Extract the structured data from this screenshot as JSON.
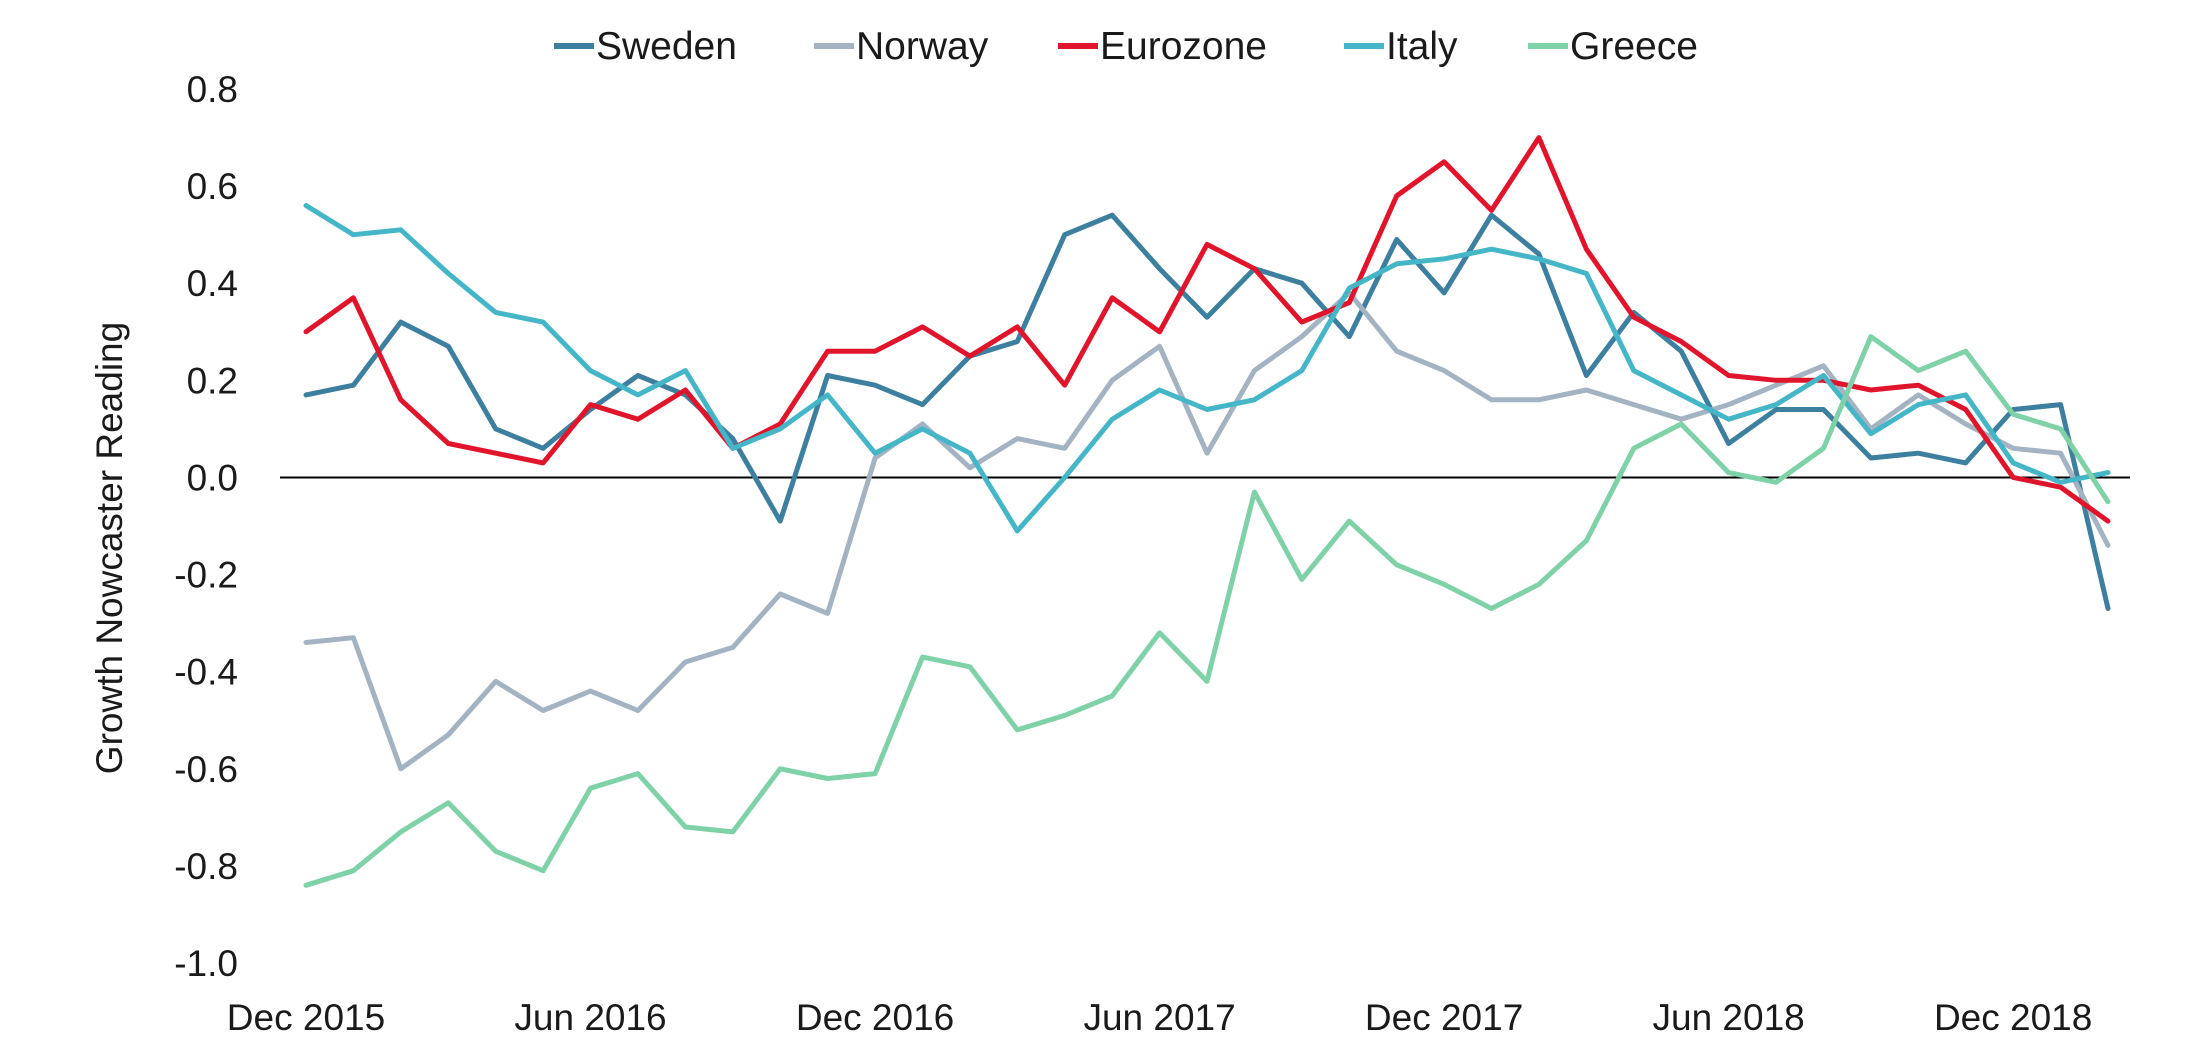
{
  "chart_data": {
    "type": "line",
    "title": "",
    "xlabel": "",
    "ylabel": "Growth Nowcaster Reading",
    "ylim": [
      -1.0,
      0.8
    ],
    "yticks": [
      "0.8",
      "0.6",
      "0.4",
      "0.2",
      "0.0",
      "-0.2",
      "-0.4",
      "-0.6",
      "-0.8",
      "-1.0"
    ],
    "x": [
      "Dec 2015",
      "Jan 2016",
      "Feb 2016",
      "Mar 2016",
      "Apr 2016",
      "May 2016",
      "Jun 2016",
      "Jul 2016",
      "Aug 2016",
      "Sep 2016",
      "Oct 2016",
      "Nov 2016",
      "Dec 2016",
      "Jan 2017",
      "Feb 2017",
      "Mar 2017",
      "Apr 2017",
      "May 2017",
      "Jun 2017",
      "Jul 2017",
      "Aug 2017",
      "Sep 2017",
      "Oct 2017",
      "Nov 2017",
      "Dec 2017",
      "Jan 2018",
      "Feb 2018",
      "Mar 2018",
      "Apr 2018",
      "May 2018",
      "Jun 2018",
      "Jul 2018",
      "Aug 2018",
      "Sep 2018",
      "Oct 2018",
      "Nov 2018",
      "Dec 2018",
      "Jan 2019",
      "Feb 2019"
    ],
    "xtick_labels": [
      "Dec 2015",
      "Jun 2016",
      "Dec 2016",
      "Jun 2017",
      "Dec 2017",
      "Jun 2018",
      "Dec 2018"
    ],
    "grid": false,
    "zero_line": true,
    "legend_position": "top",
    "series": [
      {
        "name": "Sweden",
        "color": "#3d7f9f",
        "values": [
          0.17,
          0.19,
          0.32,
          0.27,
          0.1,
          0.06,
          0.14,
          0.21,
          0.17,
          0.08,
          -0.09,
          0.21,
          0.19,
          0.15,
          0.25,
          0.28,
          0.5,
          0.54,
          0.43,
          0.33,
          0.43,
          0.4,
          0.29,
          0.49,
          0.38,
          0.54,
          0.46,
          0.21,
          0.34,
          0.26,
          0.07,
          0.14,
          0.14,
          0.04,
          0.05,
          0.03,
          0.14,
          0.15,
          -0.27
        ]
      },
      {
        "name": "Norway",
        "color": "#a3b3c2",
        "values": [
          -0.34,
          -0.33,
          -0.6,
          -0.53,
          -0.42,
          -0.48,
          -0.44,
          -0.48,
          -0.38,
          -0.35,
          -0.24,
          -0.28,
          0.04,
          0.11,
          0.02,
          0.08,
          0.06,
          0.2,
          0.27,
          0.05,
          0.22,
          0.29,
          0.38,
          0.26,
          0.22,
          0.16,
          0.16,
          0.18,
          0.15,
          0.12,
          0.15,
          0.19,
          0.23,
          0.1,
          0.17,
          0.11,
          0.06,
          0.05,
          -0.14
        ]
      },
      {
        "name": "Eurozone",
        "color": "#e0142a",
        "values": [
          0.3,
          0.37,
          0.16,
          0.07,
          0.05,
          0.03,
          0.15,
          0.12,
          0.18,
          0.06,
          0.11,
          0.26,
          0.26,
          0.31,
          0.25,
          0.31,
          0.19,
          0.37,
          0.3,
          0.48,
          0.43,
          0.32,
          0.36,
          0.58,
          0.65,
          0.55,
          0.7,
          0.47,
          0.33,
          0.28,
          0.21,
          0.2,
          0.2,
          0.18,
          0.19,
          0.14,
          0.0,
          -0.02,
          -0.09
        ]
      },
      {
        "name": "Italy",
        "color": "#45b6c8",
        "values": [
          0.56,
          0.5,
          0.51,
          0.42,
          0.34,
          0.32,
          0.22,
          0.17,
          0.22,
          0.06,
          0.1,
          0.17,
          0.05,
          0.1,
          0.05,
          -0.11,
          0.0,
          0.12,
          0.18,
          0.14,
          0.16,
          0.22,
          0.39,
          0.44,
          0.45,
          0.47,
          0.45,
          0.42,
          0.22,
          0.17,
          0.12,
          0.15,
          0.21,
          0.09,
          0.15,
          0.17,
          0.03,
          -0.01,
          0.01
        ]
      },
      {
        "name": "Greece",
        "color": "#7fd1a8",
        "values": [
          -0.84,
          -0.81,
          -0.73,
          -0.67,
          -0.77,
          -0.81,
          -0.64,
          -0.61,
          -0.72,
          -0.73,
          -0.6,
          -0.62,
          -0.61,
          -0.37,
          -0.39,
          -0.52,
          -0.49,
          -0.45,
          -0.32,
          -0.42,
          -0.03,
          -0.21,
          -0.09,
          -0.18,
          -0.22,
          -0.27,
          -0.22,
          -0.13,
          0.06,
          0.11,
          0.01,
          -0.01,
          0.06,
          0.29,
          0.22,
          0.26,
          0.13,
          0.1,
          -0.05
        ]
      }
    ]
  }
}
